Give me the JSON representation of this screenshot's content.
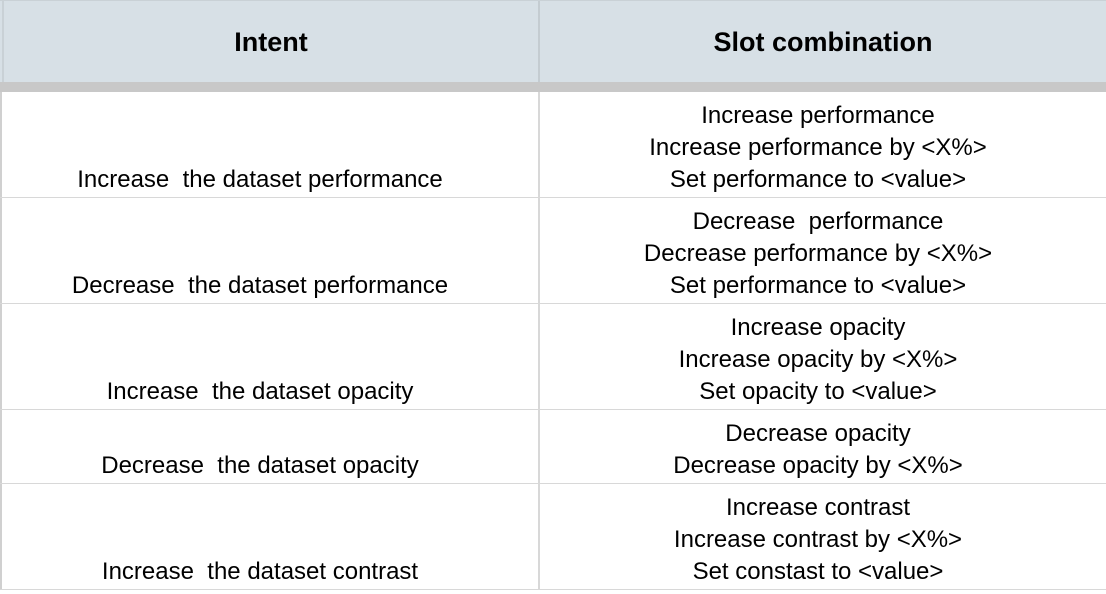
{
  "table": {
    "headers": {
      "intent": "Intent",
      "slot_combination": "Slot combination"
    },
    "rows": [
      {
        "intent": "Increase  the dataset performance",
        "slots": [
          "Increase performance",
          "Increase performance by <X%>",
          "Set performance to <value>"
        ]
      },
      {
        "intent": "Decrease  the dataset performance",
        "slots": [
          "Decrease  performance",
          "Decrease performance by <X%>",
          "Set performance to <value>"
        ]
      },
      {
        "intent": "Increase  the dataset opacity",
        "slots": [
          "Increase opacity",
          "Increase opacity by <X%>",
          "Set opacity to <value>"
        ]
      },
      {
        "intent": "Decrease  the dataset opacity",
        "slots": [
          "Decrease opacity",
          "Decrease opacity by <X%>"
        ]
      },
      {
        "intent": "Increase  the dataset contrast",
        "slots": [
          "Increase contrast",
          "Increase contrast by <X%>",
          "Set constast to <value>"
        ]
      }
    ]
  },
  "colors": {
    "header_background": "#d7e0e6",
    "freeze_bar": "#c8c8c8",
    "gridline": "#d8d8d8"
  }
}
